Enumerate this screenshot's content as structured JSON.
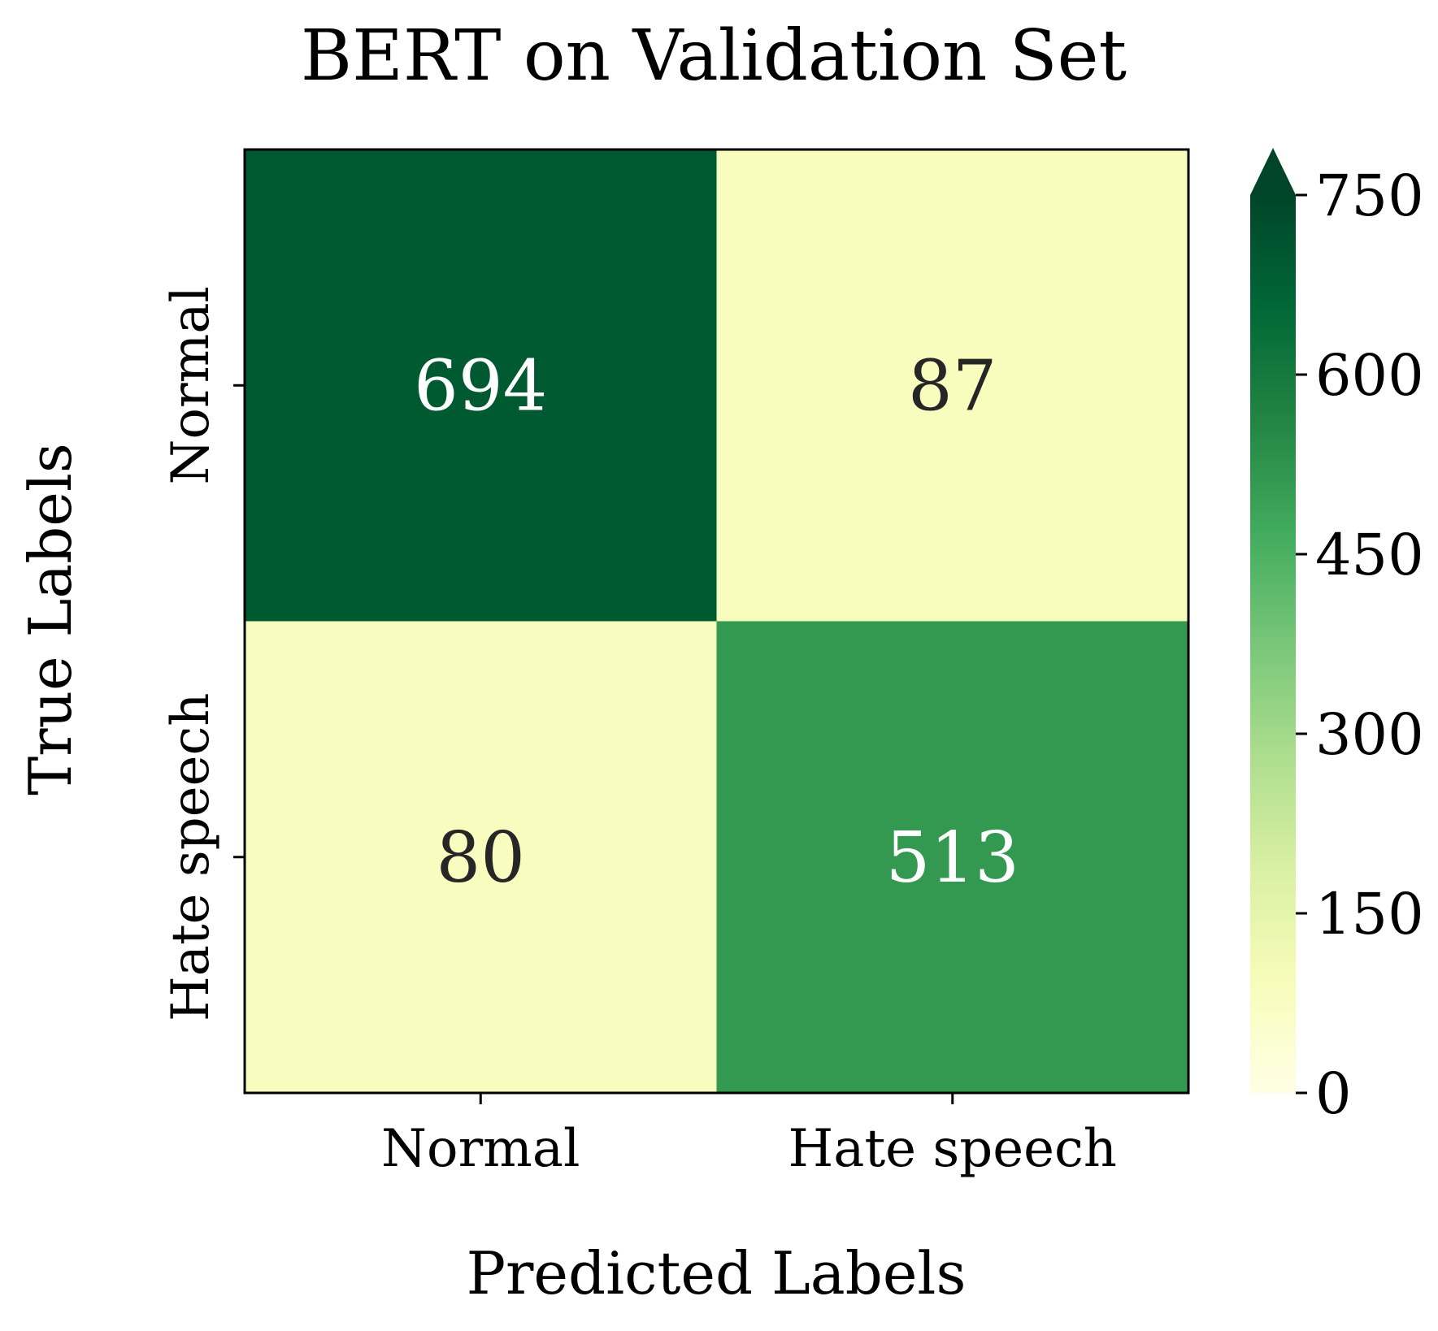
{
  "chart_data": {
    "type": "heatmap",
    "title": "BERT on Validation Set",
    "xlabel": "Predicted Labels",
    "ylabel": "True Labels",
    "x_categories": [
      "Normal",
      "Hate speech"
    ],
    "y_categories": [
      "Normal",
      "Hate speech"
    ],
    "values": [
      [
        694,
        87
      ],
      [
        80,
        513
      ]
    ],
    "cell_labels": [
      [
        "694",
        "87"
      ],
      [
        "80",
        "513"
      ]
    ],
    "colorbar": {
      "min": 0,
      "max": 750,
      "extend": "max",
      "ticks": [
        0,
        150,
        300,
        450,
        600,
        750
      ],
      "tick_labels": [
        "0",
        "150",
        "300",
        "450",
        "600",
        "750"
      ],
      "colormap": [
        "#ffffe5",
        "#f7fcb9",
        "#d9f0a3",
        "#addd8e",
        "#78c679",
        "#41ab5d",
        "#238443",
        "#006837",
        "#004529"
      ]
    },
    "grid": false
  }
}
